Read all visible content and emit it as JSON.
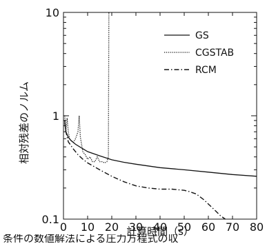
{
  "chart_data": {
    "type": "line",
    "title": "",
    "xlabel": "計算時間（s）",
    "ylabel": "相対残差のノルム",
    "xlim": [
      0,
      80
    ],
    "ylim": [
      0.1,
      10
    ],
    "yscale": "log",
    "xticks": [
      0,
      10,
      20,
      30,
      40,
      50,
      60,
      70,
      80
    ],
    "yticks": [
      {
        "value": 0.1,
        "label": "0.1"
      },
      {
        "value": 1,
        "label": "1"
      },
      {
        "value": 10,
        "label": "10"
      }
    ],
    "legend_position": "top-right",
    "series": [
      {
        "name": "GS",
        "style": "solid",
        "x": [
          0.5,
          1,
          2,
          3,
          5,
          8,
          10,
          15,
          20,
          25,
          30,
          40,
          50,
          60,
          70,
          80
        ],
        "y": [
          0.85,
          0.7,
          0.62,
          0.58,
          0.53,
          0.48,
          0.45,
          0.41,
          0.375,
          0.355,
          0.34,
          0.315,
          0.3,
          0.285,
          0.27,
          0.26
        ]
      },
      {
        "name": "CGSTAB",
        "style": "dotted",
        "x": [
          0.5,
          1,
          1.5,
          2,
          2.5,
          3,
          4,
          5,
          6,
          6.5,
          7,
          8,
          9,
          10,
          11,
          12,
          13,
          14,
          15,
          16,
          17,
          18,
          18.6,
          18.8
        ],
        "y": [
          1.0,
          0.7,
          0.95,
          0.7,
          0.6,
          0.58,
          0.55,
          0.6,
          0.7,
          1.0,
          0.62,
          0.45,
          0.42,
          0.38,
          0.4,
          0.36,
          0.36,
          0.4,
          0.36,
          0.36,
          0.35,
          0.36,
          0.4,
          10
        ]
      },
      {
        "name": "RCM",
        "style": "dashdot",
        "x": [
          0.5,
          1,
          2,
          4,
          6,
          8,
          10,
          15,
          20,
          25,
          30,
          35,
          40,
          45,
          50,
          52,
          55,
          58,
          60,
          63,
          65,
          67
        ],
        "y": [
          0.9,
          0.7,
          0.56,
          0.48,
          0.42,
          0.38,
          0.35,
          0.3,
          0.26,
          0.23,
          0.21,
          0.2,
          0.195,
          0.195,
          0.19,
          0.185,
          0.175,
          0.155,
          0.14,
          0.12,
          0.108,
          0.1
        ]
      }
    ]
  },
  "caption_fragment": "条件の数値解法による圧力方程式の収"
}
